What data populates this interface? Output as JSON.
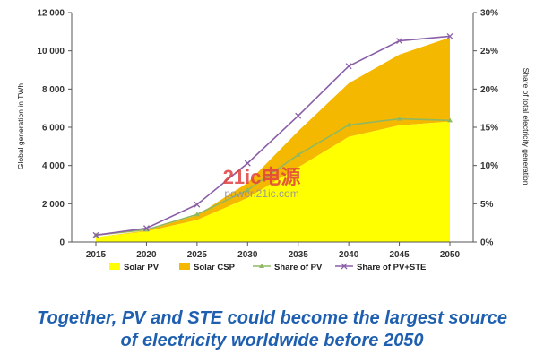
{
  "chart_data": {
    "type": "area",
    "x": [
      2015,
      2020,
      2025,
      2030,
      2035,
      2040,
      2045,
      2050
    ],
    "series": [
      {
        "name": "Solar PV",
        "kind": "stacked-area",
        "axis": "left",
        "color": "#ffff00",
        "values": [
          250,
          550,
          1150,
          2300,
          3900,
          5500,
          6100,
          6300
        ]
      },
      {
        "name": "Solar CSP",
        "kind": "stacked-area",
        "axis": "left",
        "color": "#f5b800",
        "values": [
          0,
          50,
          250,
          800,
          1900,
          2800,
          3700,
          4400
        ]
      },
      {
        "name": "Share of PV",
        "kind": "line",
        "axis": "right",
        "color": "#90b860",
        "marker": "triangle",
        "values": [
          0.9,
          1.6,
          3.6,
          6.8,
          11.4,
          15.3,
          16.1,
          15.9
        ]
      },
      {
        "name": "Share of PV+STE",
        "kind": "line",
        "axis": "right",
        "color": "#8a5fa8",
        "marker": "x",
        "values": [
          0.9,
          1.8,
          4.9,
          10.3,
          16.5,
          23.0,
          26.3,
          26.9
        ]
      }
    ],
    "ylabel": "Global generation in TWh",
    "y2label": "Share of total electricity generation",
    "ylim": [
      0,
      12000
    ],
    "y2lim": [
      0,
      30
    ],
    "xticks": [
      "2015",
      "2020",
      "2025",
      "2030",
      "2035",
      "2040",
      "2045",
      "2050"
    ],
    "yticks": [
      "0",
      "2 000",
      "4 000",
      "6 000",
      "8 000",
      "10 000",
      "12 000"
    ],
    "y2ticks": [
      "0%",
      "5%",
      "10%",
      "15%",
      "20%",
      "25%",
      "30%"
    ],
    "legend_position": "bottom",
    "grid": false
  },
  "watermark": {
    "logo": "21ic电源",
    "site": "power.21ic.com"
  },
  "caption": {
    "line1": "Together, PV and STE could become the largest source",
    "line2": "of electricity worldwide before 2050"
  }
}
